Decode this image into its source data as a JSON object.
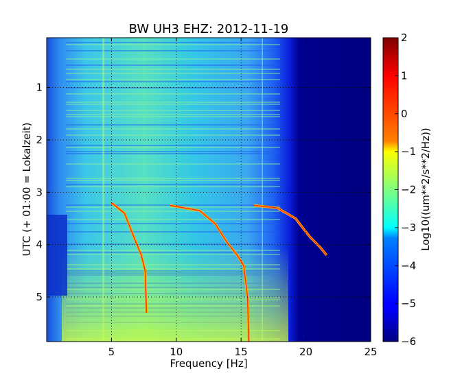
{
  "chart_data": {
    "type": "heatmap",
    "title": "BW UH3 EHZ: 2012-11-19",
    "xlabel": "Frequency [Hz]",
    "ylabel": "UTC (+ 01:00 = Lokalzeit)",
    "xlim": [
      0,
      25
    ],
    "ylim": [
      5.85,
      0.05
    ],
    "x_ticks": [
      5,
      10,
      15,
      20,
      25
    ],
    "y_ticks": [
      1,
      2,
      3,
      4,
      5
    ],
    "grid": true,
    "colormap": "jet",
    "colorbar": {
      "label": "Log10((um**2/s**2/Hz))",
      "range": [
        -6,
        2
      ],
      "ticks": [
        2,
        1,
        0,
        -1,
        -2,
        -3,
        -4,
        -5,
        -6
      ]
    },
    "features": [
      {
        "name": "tremor-line-1",
        "points": [
          [
            5.0,
            3.2
          ],
          [
            6.0,
            3.4
          ],
          [
            6.8,
            3.9
          ],
          [
            7.3,
            4.2
          ],
          [
            7.6,
            4.5
          ],
          [
            7.7,
            5.3
          ]
        ]
      },
      {
        "name": "tremor-line-2",
        "points": [
          [
            9.5,
            3.25
          ],
          [
            11.8,
            3.35
          ],
          [
            13.0,
            3.6
          ],
          [
            13.9,
            3.95
          ],
          [
            14.7,
            4.2
          ],
          [
            15.2,
            4.4
          ],
          [
            15.5,
            5.0
          ],
          [
            15.6,
            5.85
          ]
        ]
      },
      {
        "name": "tremor-line-3",
        "points": [
          [
            16.0,
            3.25
          ],
          [
            17.8,
            3.3
          ],
          [
            19.2,
            3.5
          ],
          [
            20.3,
            3.85
          ],
          [
            21.1,
            4.05
          ],
          [
            21.6,
            4.2
          ]
        ]
      }
    ],
    "noise_floor_cutoff_hz": 19
  }
}
